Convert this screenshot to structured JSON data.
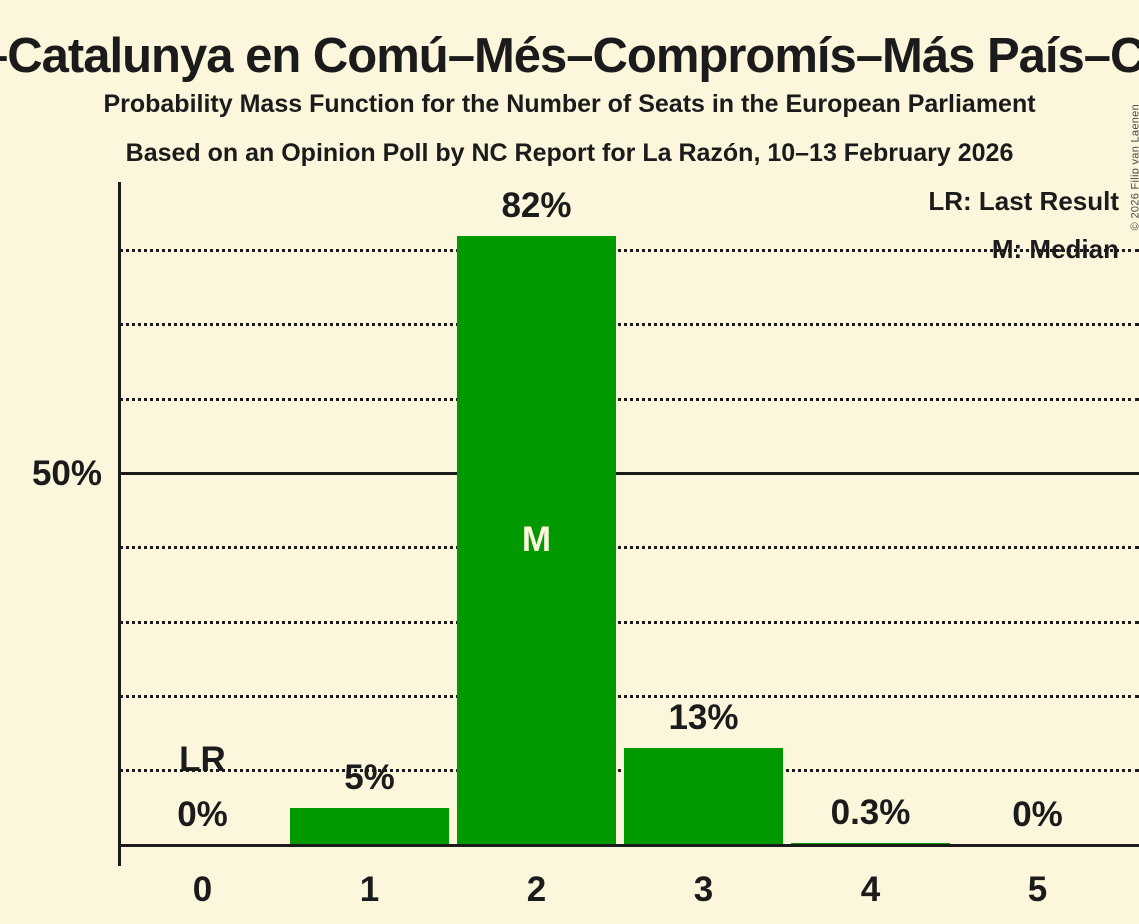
{
  "header": {
    "title": "ar–Catalunya en Comú–Més–Compromís–Más País–Chu",
    "subtitle_line1": "Probability Mass Function for the Number of Seats in the European Parliament",
    "subtitle_line2": "Based on an Opinion Poll by NC Report for La Razón, 10–13 February 2026"
  },
  "copyright": "© 2026 Filip van Laenen",
  "legend": {
    "last_result": "LR: Last Result",
    "median": "M: Median"
  },
  "colors": {
    "background": "#FBF6DC",
    "bar_green": "#009900",
    "text": "#1B1B1B",
    "copyright_text": "#4A4A4A",
    "median_label": "#FBF6DC"
  },
  "chart_data": {
    "type": "bar",
    "categories": [
      "0",
      "1",
      "2",
      "3",
      "4",
      "5"
    ],
    "values": [
      0,
      5,
      82,
      13,
      0.3,
      0
    ],
    "value_labels": [
      "0%",
      "5%",
      "82%",
      "13%",
      "0.3%",
      "0%"
    ],
    "xlabel": "",
    "ylabel": "",
    "ylim": [
      0,
      89
    ],
    "y_axis_tick_label": "50%",
    "solid_gridline_percent": 50,
    "dotted_gridline_percents": [
      10,
      20,
      30,
      40,
      60,
      70,
      80
    ],
    "median_category": "2",
    "median_marker": "M",
    "last_result_category": "0",
    "last_result_marker": "LR",
    "grid": "horizontal dotted lines, solid line at 50%",
    "legend_position": "top-right"
  }
}
